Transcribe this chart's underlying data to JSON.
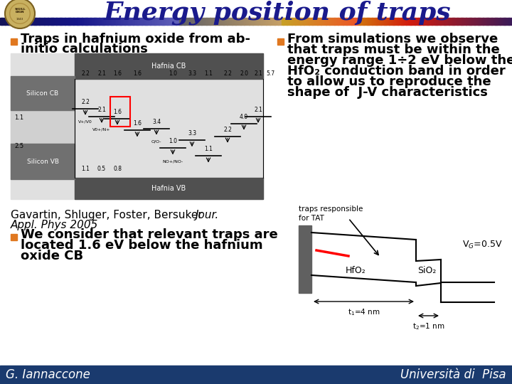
{
  "title": "Energy position of traps",
  "title_color": "#1a1a8c",
  "title_fontsize": 26,
  "bg_color": "#ffffff",
  "footer_bar_color": "#1a3a6e",
  "footer_text_left": "G. Iannaccone",
  "footer_text_right": "Università di  Pisa",
  "footer_fontsize": 12,
  "bullet_color": "#e07820",
  "bullet1_line1": "Traps in hafnium oxide from ab-",
  "bullet1_line2": "initio calculations",
  "bullet2_line1": "From simulations we observe",
  "bullet2_line2": "that traps must be within the",
  "bullet2_line3": "energy range 1÷2 eV below the",
  "bullet2_line4": "HfO₂ conduction band in order",
  "bullet2_line5": "to allow us to reproduce the",
  "bullet2_line6": "shape of  J-V characteristics",
  "bullet3_line1": "We consider that relevant traps are",
  "bullet3_line2": "located 1.6 eV below the hafnium",
  "bullet3_line3": "oxide CB",
  "citation_line1": "Gavartin, Shluger, Foster, Bersuker ",
  "citation_italic": "Jour.",
  "citation_line2": "Appl. Phys 2005",
  "text_fontsize": 13,
  "small_fontsize": 11
}
